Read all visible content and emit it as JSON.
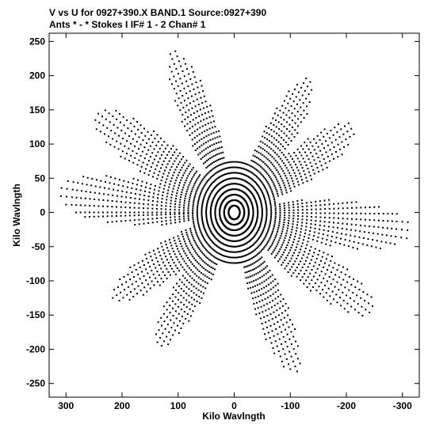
{
  "chart_data": {
    "type": "scatter",
    "title_line1": "V vs U for 0927+390.X BAND.1   Source:0927+390",
    "title_line2": "Ants * - *     Stokes I  IF# 1 - 2  Chan# 1",
    "xlabel": "Kilo Wavlngth",
    "ylabel": "Kilo Wavlngth",
    "xlim": [
      330,
      -330
    ],
    "ylim": [
      -270,
      262
    ],
    "x_ticks": [
      300,
      200,
      100,
      0,
      -100,
      -200,
      -300
    ],
    "x_tick_labels": [
      "300",
      "200",
      "100",
      "0",
      "-100",
      "-200",
      "-300"
    ],
    "y_ticks": [
      250,
      200,
      150,
      100,
      50,
      0,
      -50,
      -100,
      -150,
      -200,
      -250
    ],
    "y_tick_labels": [
      "250",
      "200",
      "150",
      "100",
      "50",
      "0",
      "-50",
      "-100",
      "-150",
      "-200",
      "-250"
    ],
    "grid": false,
    "marker_color": "#000000",
    "uv_pattern": {
      "description_free": true,
      "arm_angles_deg": [
        5,
        30,
        65,
        125,
        150,
        185,
        210,
        245,
        305,
        330
      ],
      "arm_max_radius": [
        320,
        290,
        260,
        240,
        250,
        320,
        290,
        260,
        240,
        250
      ],
      "point_spacing_deg": 2.2,
      "ring_radii": [
        10,
        18,
        26,
        34,
        42,
        50,
        58,
        66,
        74,
        82,
        90,
        98,
        106,
        114,
        122,
        130,
        138,
        146,
        154,
        162,
        170,
        178,
        186,
        194,
        202,
        210,
        218,
        226,
        234,
        242,
        250,
        258,
        266,
        274,
        282,
        290,
        300,
        310,
        320
      ]
    }
  }
}
